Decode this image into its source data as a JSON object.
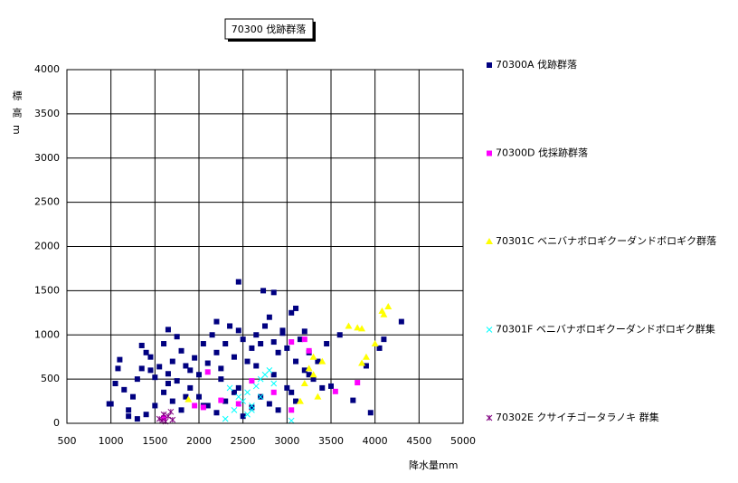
{
  "chart_data": {
    "type": "scatter",
    "title": "70300 伐跡群落",
    "x_label": "降水量mm",
    "y_label": "標高m",
    "xlim": [
      500,
      5000
    ],
    "ylim": [
      0,
      4000
    ],
    "xticks": [
      500,
      1000,
      1500,
      2000,
      2500,
      3000,
      3500,
      4000,
      4500,
      5000
    ],
    "yticks": [
      0,
      500,
      1000,
      1500,
      2000,
      2500,
      3000,
      3500,
      4000
    ],
    "grid": true,
    "legend": "right",
    "series": [
      {
        "name": "70300A 伐跡群落",
        "color": "#000080",
        "marker": "square",
        "x": [
          1000,
          1050,
          1100,
          1150,
          1200,
          1250,
          1300,
          1350,
          1400,
          1450,
          1500,
          1550,
          1600,
          1650,
          1700,
          1750,
          1800,
          1850,
          1900,
          1950,
          2000,
          2050,
          2100,
          2150,
          2200,
          2250,
          2300,
          2350,
          2400,
          2450,
          2500,
          2550,
          2600,
          2650,
          2700,
          2750,
          2800,
          2850,
          2900,
          2950,
          3000,
          3050,
          3100,
          3150,
          3200,
          3250,
          3300,
          3350,
          3400,
          3500,
          1200,
          1300,
          1400,
          1500,
          1600,
          1700,
          1800,
          1900,
          2000,
          2100,
          2200,
          2300,
          2400,
          2500,
          2600,
          2700,
          2800,
          2900,
          3000,
          3100,
          1450,
          1650,
          1850,
          2050,
          2250,
          2450,
          2650,
          2850,
          3050,
          3250,
          2450,
          2730,
          2850,
          4300,
          4100,
          3100,
          1650,
          1080,
          980,
          3950,
          3750,
          3600,
          3450,
          4050,
          3900,
          2200,
          1750,
          1350,
          2950,
          3200
        ],
        "y": [
          220,
          450,
          720,
          380,
          150,
          300,
          500,
          620,
          800,
          750,
          520,
          640,
          900,
          560,
          700,
          480,
          820,
          650,
          600,
          740,
          550,
          900,
          680,
          1000,
          800,
          620,
          900,
          1100,
          750,
          1050,
          950,
          700,
          850,
          1000,
          900,
          1100,
          1200,
          920,
          800,
          1050,
          850,
          1250,
          700,
          950,
          600,
          800,
          500,
          700,
          400,
          420,
          80,
          50,
          100,
          200,
          350,
          250,
          150,
          400,
          300,
          200,
          120,
          250,
          350,
          80,
          180,
          300,
          220,
          150,
          400,
          250,
          600,
          450,
          300,
          200,
          500,
          400,
          650,
          550,
          350,
          550,
          1600,
          1500,
          1480,
          1150,
          950,
          1300,
          1060,
          620,
          220,
          120,
          260,
          1000,
          900,
          850,
          650,
          1150,
          980,
          880,
          1020,
          1040
        ]
      },
      {
        "name": "70300D 伐採跡群落",
        "color": "#ff00ff",
        "marker": "square",
        "x": [
          2100,
          3050,
          3200,
          3250,
          2850,
          1950,
          2050,
          2250,
          3800,
          3550,
          2450,
          3050,
          1600,
          2600
        ],
        "y": [
          580,
          920,
          950,
          820,
          350,
          200,
          180,
          260,
          460,
          360,
          220,
          150,
          60,
          480
        ]
      },
      {
        "name": "70301C ベニバナボロギクーダンドボロギク群落",
        "color": "#ffff00",
        "marker": "triangle",
        "x": [
          4150,
          4080,
          4100,
          3800,
          3850,
          3700,
          3400,
          3250,
          3300,
          3200,
          3150,
          3350,
          3900,
          3850,
          1880,
          4000,
          3300
        ],
        "y": [
          1320,
          1270,
          1230,
          1080,
          1070,
          1100,
          700,
          620,
          750,
          450,
          250,
          300,
          750,
          680,
          270,
          900,
          550
        ]
      },
      {
        "name": "70301F ベニバナボロギクーダンドボロギク群集",
        "color": "#00ffff",
        "marker": "x",
        "x": [
          2350,
          2450,
          2500,
          2550,
          2600,
          2650,
          2700,
          2750,
          2800,
          2600,
          2550,
          2400,
          2700,
          2300,
          2850,
          3050
        ],
        "y": [
          400,
          300,
          250,
          350,
          200,
          420,
          500,
          550,
          600,
          150,
          100,
          150,
          300,
          50,
          450,
          30
        ]
      },
      {
        "name": "70302E クサイチゴータラノキ 群集",
        "color": "#800080",
        "marker": "star",
        "x": [
          1550,
          1600,
          1650,
          1680,
          1700,
          1620,
          1580
        ],
        "y": [
          50,
          100,
          80,
          130,
          40,
          20,
          30
        ]
      }
    ]
  }
}
